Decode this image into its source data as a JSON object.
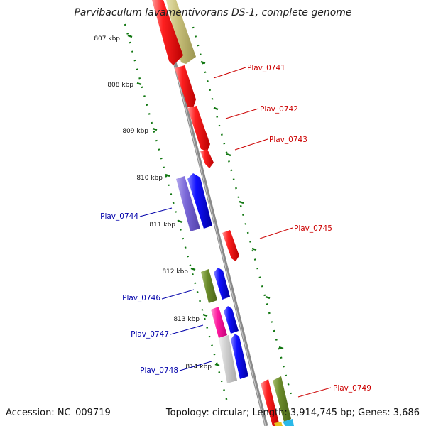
{
  "title": "Parvibaculum lavamentivorans DS-1, complete genome",
  "footer": {
    "accession": "Accession: NC_009719",
    "topology": "Topology: circular; Length: 3,914,745 bp; Genes: 3,686"
  },
  "ticks": [
    "807 kbp",
    "808 kbp",
    "809 kbp",
    "810 kbp",
    "811 kbp",
    "812 kbp",
    "813 kbp",
    "814 kbp"
  ],
  "genes": [
    {
      "id": "Plav_0741",
      "strand": "+",
      "color": "#cc0000"
    },
    {
      "id": "Plav_0742",
      "strand": "+",
      "color": "#cc0000"
    },
    {
      "id": "Plav_0743",
      "strand": "+",
      "color": "#cc0000"
    },
    {
      "id": "Plav_0744",
      "strand": "-",
      "color": "#0000cc"
    },
    {
      "id": "Plav_0745",
      "strand": "+",
      "color": "#cc0000"
    },
    {
      "id": "Plav_0746",
      "strand": "-",
      "color": "#0000cc"
    },
    {
      "id": "Plav_0747",
      "strand": "-",
      "color": "#0000cc"
    },
    {
      "id": "Plav_0748",
      "strand": "-",
      "color": "#0000cc"
    },
    {
      "id": "Plav_0749",
      "strand": "+",
      "color": "#cc0000"
    }
  ],
  "colors": {
    "forward_label": "#cc0000",
    "reverse_label": "#0000aa",
    "backbone": "#888888",
    "tick": "#006600"
  }
}
